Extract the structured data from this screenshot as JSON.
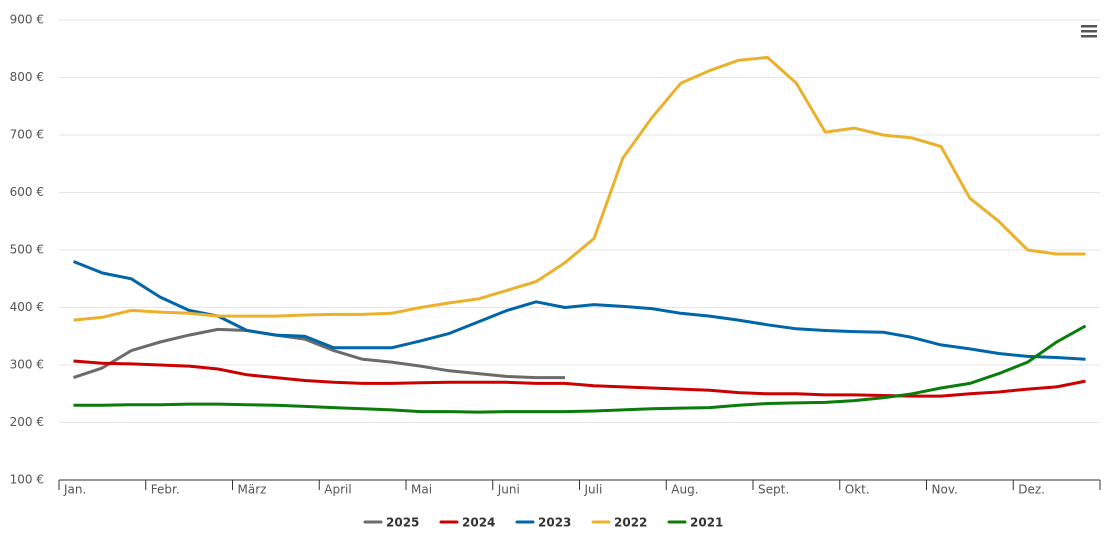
{
  "chart_data": {
    "type": "line",
    "categories": [
      "Jan.",
      null,
      null,
      "Febr.",
      null,
      null,
      "März",
      null,
      null,
      "April",
      null,
      null,
      "Mai",
      null,
      null,
      "Juni",
      null,
      null,
      "Juli",
      null,
      null,
      "Aug.",
      null,
      null,
      "Sept.",
      null,
      null,
      "Okt.",
      null,
      null,
      "Nov.",
      null,
      null,
      "Dez.",
      null,
      null
    ],
    "ylim": [
      100,
      900
    ],
    "yticks": [
      {
        "value": 100,
        "label": "100 €"
      },
      {
        "value": 200,
        "label": "200 €"
      },
      {
        "value": 300,
        "label": "300 €"
      },
      {
        "value": 400,
        "label": "400 €"
      },
      {
        "value": 500,
        "label": "500 €"
      },
      {
        "value": 600,
        "label": "600 €"
      },
      {
        "value": 700,
        "label": "700 €"
      },
      {
        "value": 800,
        "label": "800 €"
      },
      {
        "value": 900,
        "label": "900 €"
      }
    ],
    "grid": true,
    "legend": "bottom",
    "series": [
      {
        "name": "2025",
        "color": "#6b6b6b",
        "values": [
          278,
          295,
          325,
          340,
          352,
          362,
          360,
          352,
          345,
          325,
          310,
          305,
          298,
          290,
          285,
          280,
          278,
          278,
          null,
          null,
          null,
          null,
          null,
          null,
          null,
          null,
          null,
          null,
          null,
          null,
          null,
          null,
          null,
          null,
          null,
          null
        ]
      },
      {
        "name": "2024",
        "color": "#cc0000",
        "values": [
          307,
          303,
          302,
          300,
          298,
          293,
          283,
          278,
          273,
          270,
          268,
          268,
          269,
          270,
          270,
          270,
          268,
          268,
          264,
          262,
          260,
          258,
          256,
          252,
          250,
          250,
          248,
          248,
          247,
          246,
          246,
          250,
          253,
          258,
          262,
          272
        ]
      },
      {
        "name": "2023",
        "color": "#0066a8",
        "values": [
          480,
          460,
          450,
          418,
          395,
          385,
          360,
          352,
          350,
          330,
          330,
          330,
          342,
          355,
          375,
          395,
          410,
          400,
          405,
          402,
          398,
          390,
          385,
          378,
          370,
          363,
          360,
          358,
          357,
          348,
          335,
          328,
          320,
          315,
          313,
          310
        ]
      },
      {
        "name": "2022",
        "color": "#ebb12c",
        "values": [
          378,
          383,
          395,
          392,
          390,
          385,
          385,
          385,
          387,
          388,
          388,
          390,
          400,
          408,
          415,
          430,
          445,
          478,
          520,
          660,
          730,
          790,
          812,
          830,
          835,
          790,
          705,
          712,
          700,
          695,
          680,
          590,
          550,
          500,
          493,
          493
        ]
      },
      {
        "name": "2021",
        "color": "#0a7c0a",
        "values": [
          230,
          230,
          231,
          231,
          232,
          232,
          231,
          230,
          228,
          226,
          224,
          222,
          219,
          219,
          218,
          219,
          219,
          219,
          220,
          222,
          224,
          225,
          226,
          230,
          233,
          234,
          235,
          238,
          243,
          250,
          260,
          268,
          285,
          305,
          340,
          368
        ]
      }
    ]
  }
}
